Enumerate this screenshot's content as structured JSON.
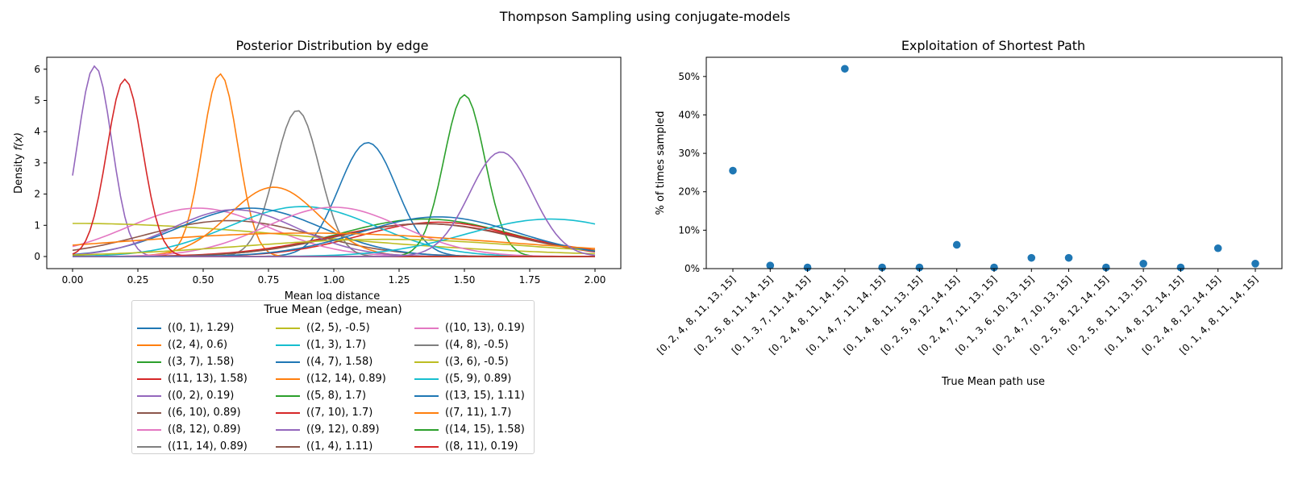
{
  "figure_title": "Thompson Sampling using conjugate-models",
  "colors": {
    "palette": [
      "#1f77b4",
      "#ff7f0e",
      "#2ca02c",
      "#d62728",
      "#9467bd",
      "#8c564b",
      "#e377c2",
      "#7f7f7f",
      "#bcbd22",
      "#17becf"
    ],
    "scatter": "#1f77b4"
  },
  "chart_data": [
    {
      "type": "line",
      "title": "Posterior Distribution by edge",
      "xlabel": "Mean log distance",
      "ylabel": "Density f(x)",
      "xlim": [
        0,
        2
      ],
      "ylim": [
        0,
        6.4
      ],
      "xticks": [
        "0.00",
        "0.25",
        "0.50",
        "0.75",
        "1.00",
        "1.25",
        "1.50",
        "1.75",
        "2.00"
      ],
      "yticks": [
        "0",
        "1",
        "2",
        "3",
        "4",
        "5",
        "6"
      ],
      "grid": false,
      "legend_title": "True Mean (edge, mean)",
      "legend_placement": "below",
      "series": [
        {
          "name": "((0, 1), 1.29)",
          "mu": 1.13,
          "sigma": 0.11,
          "peak": 3.65
        },
        {
          "name": "((2, 4), 0.6)",
          "mu": 0.565,
          "sigma": 0.068,
          "peak": 5.85
        },
        {
          "name": "((3, 7), 1.58)",
          "mu": 1.35,
          "sigma": 0.33,
          "peak": 1.2
        },
        {
          "name": "((11, 13), 1.58)",
          "mu": 1.4,
          "sigma": 0.3,
          "peak": 1.1
        },
        {
          "name": "((0, 2), 0.19)",
          "mu": 0.085,
          "sigma": 0.065,
          "peak": 6.1
        },
        {
          "name": "((6, 10), 0.89)",
          "mu": 0.6,
          "sigma": 0.32,
          "peak": 1.15
        },
        {
          "name": "((8, 12), 0.89)",
          "mu": 0.48,
          "sigma": 0.27,
          "peak": 1.55
        },
        {
          "name": "((11, 14), 0.89)",
          "mu": 0.86,
          "sigma": 0.085,
          "peak": 4.68
        },
        {
          "name": "((2, 5), -0.5)",
          "mu": 0.0,
          "sigma": 0.9,
          "peak": 1.06
        },
        {
          "name": "((1, 3), 1.7)",
          "mu": 0.88,
          "sigma": 0.28,
          "peak": 1.6
        },
        {
          "name": "((4, 7), 1.58)",
          "mu": 0.68,
          "sigma": 0.27,
          "peak": 1.55
        },
        {
          "name": "((12, 14), 0.89)",
          "mu": 0.77,
          "sigma": 0.17,
          "peak": 2.22
        },
        {
          "name": "((5, 8), 1.7)",
          "mu": 1.5,
          "sigma": 0.078,
          "peak": 5.18
        },
        {
          "name": "((7, 10), 1.7)",
          "mu": 1.35,
          "sigma": 0.36,
          "peak": 1.05
        },
        {
          "name": "((9, 12), 0.89)",
          "mu": 0.62,
          "sigma": 0.24,
          "peak": 1.5
        },
        {
          "name": "((1, 4), 1.11)",
          "mu": 1.35,
          "sigma": 0.34,
          "peak": 1.05
        },
        {
          "name": "((10, 13), 0.19)",
          "mu": 1.0,
          "sigma": 0.26,
          "peak": 1.58
        },
        {
          "name": "((4, 8), -0.5)",
          "mu": 0.0,
          "sigma": 0.06,
          "peak": 0.02
        },
        {
          "name": "((3, 6), -0.5)",
          "mu": 1.2,
          "sigma": 0.55,
          "peak": 0.55
        },
        {
          "name": "((5, 9), 0.89)",
          "mu": 1.83,
          "sigma": 0.32,
          "peak": 1.2
        },
        {
          "name": "((13, 15), 1.11)",
          "mu": 1.4,
          "sigma": 0.3,
          "peak": 1.27
        },
        {
          "name": "((7, 11), 1.7)",
          "mu": 0.9,
          "sigma": 0.75,
          "peak": 0.75
        },
        {
          "name": "((14, 15), 1.58)",
          "mu": 0.0,
          "sigma": 0.05,
          "peak": 0.01
        },
        {
          "name": "((8, 11), 0.19)",
          "mu": 0.2,
          "sigma": 0.068,
          "peak": 5.68
        },
        {
          "name": "((8, 11), 0.19)",
          "mu": 1.64,
          "sigma": 0.12,
          "peak": 3.35
        }
      ]
    },
    {
      "type": "scatter",
      "title": "Exploitation of Shortest Path",
      "xlabel": "True Mean path use",
      "ylabel": "% of times sampled",
      "ylim": [
        0,
        0.55
      ],
      "yticks": [
        "0%",
        "10%",
        "20%",
        "30%",
        "40%",
        "50%"
      ],
      "grid": false,
      "categories": [
        "[0, 2, 4, 8, 11, 13, 15]",
        "[0, 2, 5, 8, 11, 14, 15]",
        "[0, 1, 3, 7, 11, 14, 15]",
        "[0, 2, 4, 8, 11, 14, 15]",
        "[0, 1, 4, 7, 11, 14, 15]",
        "[0, 1, 4, 8, 11, 13, 15]",
        "[0, 2, 5, 9, 12, 14, 15]",
        "[0, 2, 4, 7, 11, 13, 15]",
        "[0, 1, 3, 6, 10, 13, 15]",
        "[0, 2, 4, 7, 10, 13, 15]",
        "[0, 2, 5, 8, 12, 14, 15]",
        "[0, 2, 5, 8, 11, 13, 15]",
        "[0, 1, 4, 8, 12, 14, 15]",
        "[0, 2, 4, 8, 12, 14, 15]",
        "[0, 1, 4, 8, 11, 14, 15]"
      ],
      "values": [
        0.255,
        0.008,
        0.003,
        0.52,
        0.003,
        0.003,
        0.062,
        0.003,
        0.028,
        0.028,
        0.003,
        0.013,
        0.003,
        0.053,
        0.013
      ]
    }
  ]
}
